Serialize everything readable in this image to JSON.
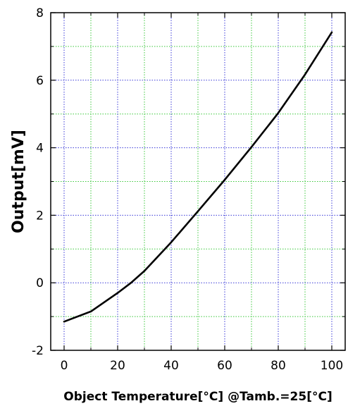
{
  "chart_data": {
    "type": "line",
    "title": "",
    "xlabel": "Object Temperature[°C] @Tamb.=25[°C]",
    "ylabel": "Output[mV]",
    "xlim": [
      -5,
      105
    ],
    "ylim": [
      -2,
      8
    ],
    "xticks": [
      0,
      20,
      40,
      60,
      80,
      100
    ],
    "yticks": [
      -2,
      0,
      2,
      4,
      6,
      8
    ],
    "grid": true,
    "x_grid": [
      10,
      30,
      50,
      70,
      90
    ],
    "y_grid": [
      -1,
      1,
      3,
      5,
      7
    ],
    "major_grid_color": "#3a3ad8",
    "minor_grid_color": "#3cc83c",
    "line_color": "#000000",
    "series": [
      {
        "x": [
          0,
          10,
          20,
          25,
          30,
          40,
          50,
          60,
          70,
          80,
          90,
          100
        ],
        "values": [
          -1.15,
          -0.85,
          -0.3,
          0.0,
          0.35,
          1.2,
          2.12,
          3.05,
          4.02,
          5.03,
          6.17,
          7.42
        ]
      }
    ]
  }
}
